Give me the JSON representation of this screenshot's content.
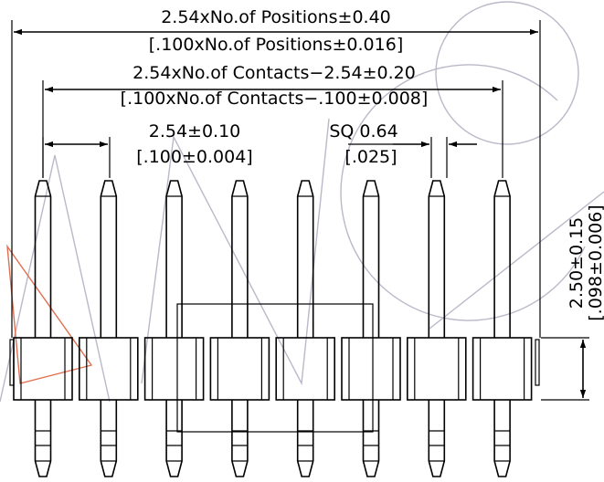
{
  "dimensions": {
    "overall_metric": "2.54xNo.of Positions±0.40",
    "overall_imperial": "[.100xNo.of Positions±0.016]",
    "contacts_metric": "2.54xNo.of Contacts−2.54±0.20",
    "contacts_imperial": "[.100xNo.of Contacts−.100±0.008]",
    "pitch_metric": "2.54±0.10",
    "pitch_imperial": "[.100±0.004]",
    "pin_size_metric": "SQ 0.64",
    "pin_size_imperial": "[.025]",
    "height_metric": "2.50±0.15",
    "height_imperial": "[.098±0.006]"
  },
  "pin_count": 8
}
